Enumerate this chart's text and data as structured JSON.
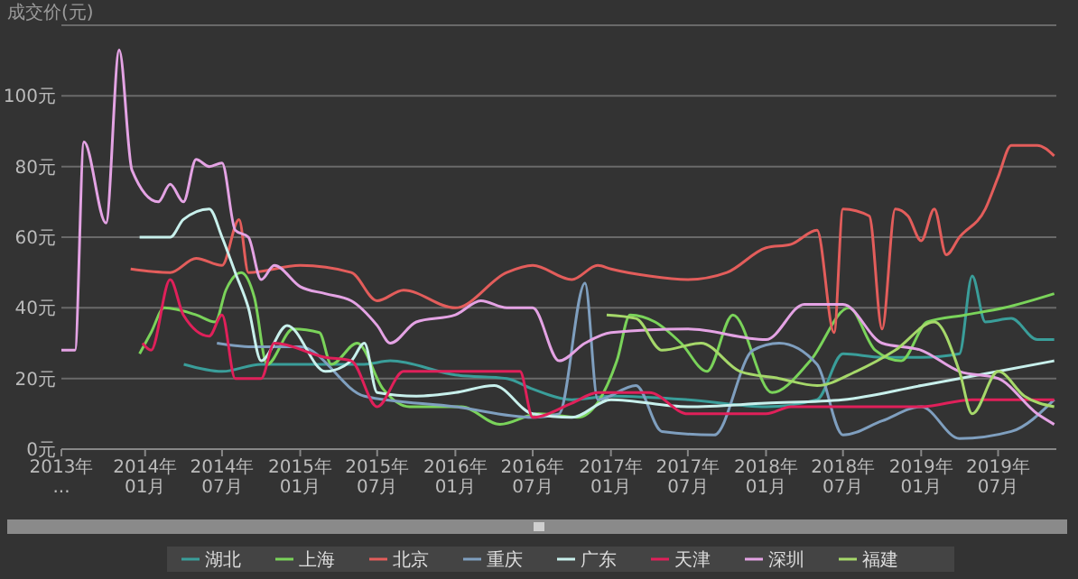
{
  "chart_data": {
    "type": "line",
    "ylabel": "成交价(元)",
    "xlim": [
      "2013-06-18",
      "2019-11-15"
    ],
    "ylim": [
      0,
      120
    ],
    "yticks": [
      {
        "value": 0,
        "label": "0元"
      },
      {
        "value": 20,
        "label": "20元"
      },
      {
        "value": 40,
        "label": "40元"
      },
      {
        "value": 60,
        "label": "60元"
      },
      {
        "value": 80,
        "label": "80元"
      },
      {
        "value": 100,
        "label": "100元"
      },
      {
        "value": 120,
        "label": null
      }
    ],
    "xticks": [
      {
        "value": "2013-06-18",
        "label": "2013年..."
      },
      {
        "value": "2014-01-01",
        "label": "2014年01月"
      },
      {
        "value": "2014-07-01",
        "label": "2014年07月"
      },
      {
        "value": "2015-01-01",
        "label": "2015年01月"
      },
      {
        "value": "2015-07-01",
        "label": "2015年07月"
      },
      {
        "value": "2016-01-01",
        "label": "2016年01月"
      },
      {
        "value": "2016-07-01",
        "label": "2016年07月"
      },
      {
        "value": "2017-01-01",
        "label": "2017年01月"
      },
      {
        "value": "2017-07-01",
        "label": "2017年07月"
      },
      {
        "value": "2018-01-01",
        "label": "2018年01月"
      },
      {
        "value": "2018-07-01",
        "label": "2018年07月"
      },
      {
        "value": "2019-01-01",
        "label": "2019年01月"
      },
      {
        "value": "2019-07-01",
        "label": "2019年07月"
      }
    ],
    "grid": "y",
    "legend": "bottom",
    "marker": "none",
    "line_style": "solid",
    "series": [
      {
        "name": "湖北",
        "color": "#3a9e9a",
        "x": [
          "2014-04-02",
          "2014-07-01",
          "2014-10-01",
          "2015-01-01",
          "2015-06-01",
          "2015-08-01",
          "2016-01-01",
          "2016-05-01",
          "2016-07-01",
          "2016-10-01",
          "2017-01-01",
          "2017-07-01",
          "2018-01-01",
          "2018-05-01",
          "2018-07-01",
          "2018-10-01",
          "2019-01-01",
          "2019-04-01",
          "2019-05-01",
          "2019-06-01",
          "2019-08-01",
          "2019-10-01",
          "2019-11-10"
        ],
        "values": [
          24,
          22,
          24,
          24,
          24,
          25,
          21,
          20,
          17,
          14,
          15,
          14,
          12,
          14,
          27,
          26,
          26,
          27,
          49,
          36,
          37,
          31,
          31
        ]
      },
      {
        "name": "上海",
        "color": "#7ad35a",
        "x": [
          "2013-12-19",
          "2014-01-15",
          "2014-02-15",
          "2014-05-01",
          "2014-06-15",
          "2014-07-10",
          "2014-08-15",
          "2014-09-15",
          "2014-10-15",
          "2014-12-15",
          "2015-02-15",
          "2015-03-15",
          "2015-05-15",
          "2015-07-15",
          "2015-09-15",
          "2016-01-15",
          "2016-04-15",
          "2016-07-15",
          "2016-10-15",
          "2017-01-15",
          "2017-02-15",
          "2017-04-15",
          "2017-06-15",
          "2017-08-15",
          "2017-10-15",
          "2018-01-15",
          "2018-04-15",
          "2018-07-15",
          "2018-09-15",
          "2018-11-15",
          "2019-01-15",
          "2019-04-15",
          "2019-07-15",
          "2019-11-10"
        ],
        "values": [
          27,
          33,
          40,
          38,
          36,
          45,
          50,
          43,
          24,
          34,
          33,
          24,
          30,
          17,
          12,
          12,
          7,
          10,
          9,
          25,
          38,
          36,
          30,
          22,
          38,
          16,
          25,
          40,
          28,
          25,
          36,
          38,
          40,
          44
        ]
      },
      {
        "name": "北京",
        "color": "#e35d5b",
        "x": [
          "2013-11-28",
          "2014-03-01",
          "2014-05-01",
          "2014-07-01",
          "2014-08-10",
          "2014-09-01",
          "2015-01-01",
          "2015-05-01",
          "2015-07-01",
          "2015-09-01",
          "2016-01-01",
          "2016-05-01",
          "2016-07-01",
          "2016-10-01",
          "2016-12-01",
          "2017-01-01",
          "2017-04-01",
          "2017-07-01",
          "2017-10-01",
          "2018-01-01",
          "2018-03-01",
          "2018-05-01",
          "2018-06-10",
          "2018-07-01",
          "2018-09-01",
          "2018-10-01",
          "2018-11-01",
          "2018-12-01",
          "2019-01-01",
          "2019-02-01",
          "2019-03-01",
          "2019-04-01",
          "2019-06-01",
          "2019-07-01",
          "2019-08-01",
          "2019-10-01",
          "2019-11-10"
        ],
        "values": [
          51,
          50,
          54,
          52,
          65,
          50,
          52,
          50,
          42,
          45,
          40,
          50,
          52,
          48,
          52,
          51,
          49,
          48,
          50,
          57,
          58,
          62,
          33,
          68,
          66,
          34,
          68,
          66,
          59,
          68,
          55,
          60,
          68,
          77,
          86,
          86,
          83
        ]
      },
      {
        "name": "重庆",
        "color": "#7f9fbf",
        "x": [
          "2014-06-19",
          "2014-09-01",
          "2015-01-01",
          "2015-06-01",
          "2016-01-01",
          "2016-07-01",
          "2016-09-01",
          "2016-11-01",
          "2016-12-01",
          "2017-03-01",
          "2017-05-01",
          "2017-09-01",
          "2017-12-01",
          "2018-02-01",
          "2018-05-01",
          "2018-07-01",
          "2018-10-01",
          "2019-01-01",
          "2019-04-01",
          "2019-08-01",
          "2019-11-10"
        ],
        "values": [
          30,
          29,
          29,
          15,
          12,
          9,
          10,
          47,
          14,
          18,
          5,
          4,
          28,
          30,
          24,
          4,
          8,
          12,
          3,
          5,
          14
        ]
      },
      {
        "name": "广东",
        "color": "#c8f0ec",
        "x": [
          "2013-12-19",
          "2014-03-01",
          "2014-04-01",
          "2014-06-01",
          "2014-07-01",
          "2014-08-01",
          "2014-09-01",
          "2014-10-01",
          "2014-12-01",
          "2015-03-01",
          "2015-05-01",
          "2015-06-01",
          "2015-07-01",
          "2015-10-01",
          "2016-01-01",
          "2016-04-01",
          "2016-07-01",
          "2016-10-01",
          "2017-01-01",
          "2017-07-01",
          "2018-01-01",
          "2018-07-01",
          "2019-01-01",
          "2019-07-01",
          "2019-11-10"
        ],
        "values": [
          60,
          60,
          65,
          68,
          60,
          50,
          40,
          25,
          35,
          22,
          25,
          30,
          16,
          15,
          16,
          18,
          10,
          9,
          14,
          12,
          13,
          14,
          18,
          22,
          25
        ]
      },
      {
        "name": "天津",
        "color": "#e0205a",
        "x": [
          "2013-12-26",
          "2014-01-15",
          "2014-03-01",
          "2014-04-01",
          "2014-06-01",
          "2014-07-01",
          "2014-08-01",
          "2014-10-01",
          "2014-11-01",
          "2015-03-01",
          "2015-05-01",
          "2015-07-01",
          "2015-09-01",
          "2016-06-01",
          "2016-07-01",
          "2016-10-01",
          "2016-12-01",
          "2017-04-01",
          "2017-07-01",
          "2018-01-01",
          "2018-03-01",
          "2018-07-01",
          "2019-01-01",
          "2019-05-01",
          "2019-11-10"
        ],
        "values": [
          30,
          28,
          48,
          38,
          32,
          38,
          20,
          20,
          30,
          26,
          25,
          12,
          22,
          22,
          9,
          13,
          16,
          16,
          10,
          10,
          12,
          12,
          12,
          14,
          14
        ]
      },
      {
        "name": "深圳",
        "color": "#e4a3e4",
        "x": [
          "2013-06-18",
          "2013-07-20",
          "2013-08-10",
          "2013-10-01",
          "2013-11-01",
          "2013-12-01",
          "2014-02-01",
          "2014-03-01",
          "2014-04-01",
          "2014-05-01",
          "2014-06-01",
          "2014-07-01",
          "2014-08-01",
          "2014-09-01",
          "2014-10-01",
          "2014-11-01",
          "2015-01-01",
          "2015-03-01",
          "2015-05-01",
          "2015-07-01",
          "2015-08-01",
          "2015-10-01",
          "2016-01-01",
          "2016-03-01",
          "2016-05-01",
          "2016-07-01",
          "2016-09-01",
          "2016-11-01",
          "2017-01-01",
          "2017-07-01",
          "2018-01-01",
          "2018-04-01",
          "2018-07-01",
          "2018-10-01",
          "2019-01-01",
          "2019-04-01",
          "2019-07-01",
          "2019-10-01",
          "2019-11-10"
        ],
        "values": [
          28,
          28,
          87,
          64,
          113,
          79,
          70,
          75,
          70,
          82,
          80,
          81,
          62,
          60,
          48,
          52,
          46,
          44,
          42,
          35,
          30,
          36,
          38,
          42,
          40,
          40,
          25,
          30,
          33,
          34,
          31,
          41,
          41,
          30,
          28,
          22,
          20,
          10,
          7
        ]
      },
      {
        "name": "福建",
        "color": "#a6d86a",
        "x": [
          "2016-12-22",
          "2017-03-01",
          "2017-05-01",
          "2017-08-01",
          "2017-11-01",
          "2018-02-01",
          "2018-05-01",
          "2018-08-01",
          "2018-11-01",
          "2019-02-01",
          "2019-04-01",
          "2019-05-01",
          "2019-07-01",
          "2019-09-01",
          "2019-11-10"
        ],
        "values": [
          38,
          37,
          28,
          30,
          22,
          20,
          18,
          22,
          28,
          36,
          22,
          10,
          22,
          15,
          12
        ]
      }
    ]
  }
}
